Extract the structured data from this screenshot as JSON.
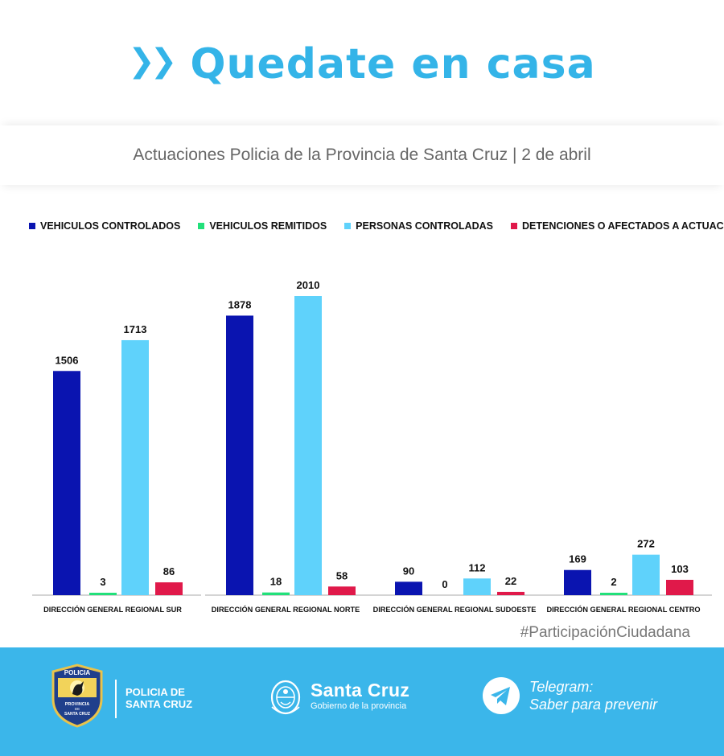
{
  "header": {
    "title": "Quedate en casa",
    "subtitle": "Actuaciones Policia de la Provincia de Santa Cruz | 2 de abril"
  },
  "chart_data": {
    "type": "bar",
    "categories": [
      "DIRECCIÓN GENERAL REGIONAL SUR",
      "DIRECCIÓN GENERAL REGIONAL NORTE",
      "DIRECCIÓN GENERAL REGIONAL SUDOESTE",
      "DIRECCIÓN GENERAL REGIONAL CENTRO"
    ],
    "series": [
      {
        "name": "VEHICULOS CONTROLADOS",
        "color": "#0a14b0",
        "values": [
          1506,
          1878,
          90,
          169
        ]
      },
      {
        "name": "VEHICULOS REMITIDOS",
        "color": "#22e07a",
        "values": [
          3,
          18,
          0,
          2
        ]
      },
      {
        "name": "PERSONAS CONTROLADAS",
        "color": "#5fd2fb",
        "values": [
          1713,
          2010,
          112,
          272
        ]
      },
      {
        "name": "DETENCIONES O AFECTADOS A ACTUACIONES",
        "color": "#e0194a",
        "values": [
          86,
          58,
          22,
          103
        ]
      }
    ],
    "ylim": [
      0,
      2010
    ],
    "grid": false,
    "legend_position": "top"
  },
  "hashtag": "#ParticipaciónCiudadana",
  "footer": {
    "police_line1": "POLICIA DE",
    "police_line2": "SANTA CRUZ",
    "gov_name": "Santa Cruz",
    "gov_tagline": "Gobierno de la provincia",
    "telegram_line1": "Telegram:",
    "telegram_line2": "Saber para prevenir",
    "badge_banner": "POLICIA",
    "badge_line1": "PROVINCIA",
    "badge_line2": "DE",
    "badge_line3": "SANTA CRUZ",
    "accent_color": "#3bb6ea",
    "icons": [
      "police-badge-icon",
      "provincial-seal-icon",
      "telegram-icon"
    ]
  }
}
